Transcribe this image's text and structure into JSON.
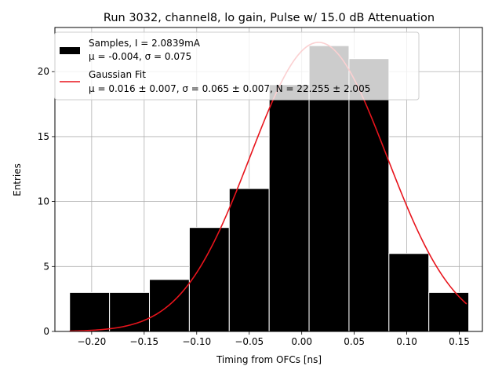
{
  "chart_data": {
    "type": "bar",
    "title": "Run 3032, channel8, lo gain, Pulse w/ 15.0 dB Attenuation",
    "xlabel": "Timing from OFCs [ns]",
    "ylabel": "Entries",
    "xlim": [
      -0.235,
      0.172
    ],
    "ylim": [
      0,
      23.4
    ],
    "grid": true,
    "legend_position": "top-left",
    "bin_edges": [
      -0.221,
      -0.183,
      -0.145,
      -0.107,
      -0.069,
      -0.031,
      0.007,
      0.045,
      0.083,
      0.121,
      0.159
    ],
    "counts": [
      3,
      3,
      4,
      8,
      11,
      19,
      22,
      21,
      6,
      3
    ],
    "xticks": [
      -0.2,
      -0.15,
      -0.1,
      -0.05,
      0.0,
      0.05,
      0.1,
      0.15
    ],
    "xtick_labels": [
      "−0.20",
      "−0.15",
      "−0.10",
      "−0.05",
      "0.00",
      "0.05",
      "0.10",
      "0.15"
    ],
    "yticks": [
      0,
      5,
      10,
      15,
      20
    ],
    "ytick_labels": [
      "0",
      "5",
      "10",
      "15",
      "20"
    ],
    "fit": {
      "mu": 0.016,
      "sigma": 0.065,
      "N": 22.255,
      "x_range": [
        -0.221,
        0.157
      ]
    },
    "legend": [
      {
        "kind": "patch",
        "color": "#000000",
        "line1": "Samples, I = 2.0839mA",
        "line2": "μ = -0.004, σ = 0.075"
      },
      {
        "kind": "line",
        "color": "#e8141c",
        "line1": "Gaussian Fit",
        "line2": "μ = 0.016 ± 0.007, σ = 0.065 ± 0.007, N = 22.255 ± 2.005"
      }
    ],
    "colors": {
      "bars": "#000000",
      "bar_edge": "#ffffff",
      "fit": "#e8141c",
      "grid": "#b0b0b0"
    }
  }
}
